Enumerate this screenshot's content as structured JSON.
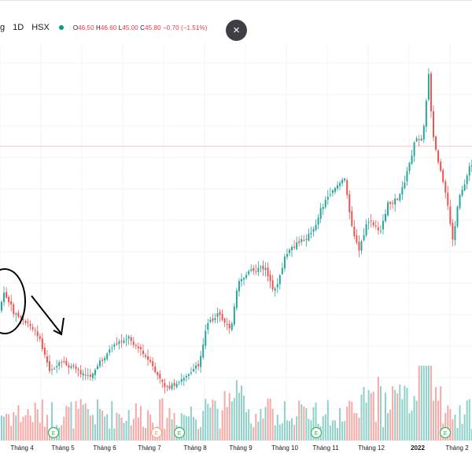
{
  "legend": {
    "symbol": "g",
    "timeframe": "1D",
    "exchange": "HSX",
    "open_label": "O",
    "open": "46.50",
    "high_label": "H",
    "high": "46.60",
    "low_label": "L",
    "low": "45.00",
    "close_label": "C",
    "close": "45.80",
    "change": "−0.70 (−1.51%)"
  },
  "close_button": {
    "icon": "close-icon",
    "glyph": "×"
  },
  "colors": {
    "up": "#26a69a",
    "down": "#ef5350",
    "vol_up": "#8fd1c9",
    "vol_down": "#f5a9a7",
    "event": "#33b85a",
    "event_alt": "#f5a77d"
  },
  "chart_data": {
    "type": "candlestick",
    "x_axis_labels": [
      "Tháng 4",
      "Tháng 5",
      "Tháng 6",
      "Tháng 7",
      "Tháng 8",
      "Tháng 9",
      "Tháng 10",
      "Tháng 11",
      "Tháng 12",
      "2022",
      "Tháng 2"
    ],
    "year_label": "2022",
    "events": [
      {
        "label": "E",
        "month": "Tháng 5"
      },
      {
        "label": "E",
        "month": "Tháng 7"
      },
      {
        "label": "E",
        "month": "Tháng 7"
      },
      {
        "label": "E",
        "month": "Tháng 11"
      },
      {
        "label": "E",
        "month": "Tháng 2"
      }
    ],
    "grid": true,
    "annotations": [
      "circle",
      "arrow"
    ]
  }
}
